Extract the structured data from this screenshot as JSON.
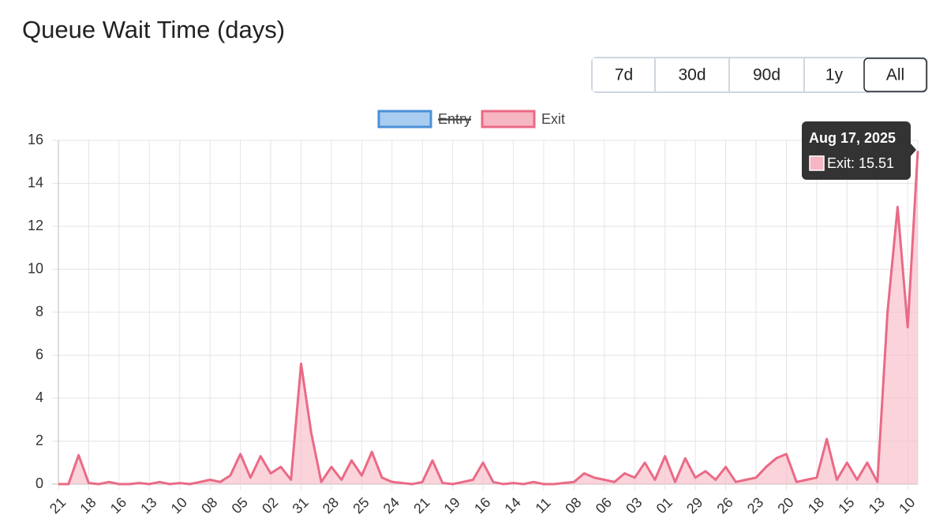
{
  "chart_data": {
    "type": "line",
    "title": "Queue Wait Time (days)",
    "ranges": [
      "7d",
      "30d",
      "90d",
      "1y",
      "All"
    ],
    "active_range": 4,
    "categories": [
      "21",
      null,
      null,
      "18",
      null,
      null,
      "16",
      null,
      null,
      "13",
      null,
      null,
      "10",
      null,
      null,
      "08",
      null,
      null,
      "05",
      null,
      null,
      "02",
      null,
      null,
      "31",
      null,
      null,
      "28",
      null,
      null,
      "25",
      null,
      null,
      "24",
      null,
      null,
      "21",
      null,
      null,
      "19",
      null,
      null,
      "16",
      null,
      null,
      "14",
      null,
      null,
      "11",
      null,
      null,
      "08",
      null,
      null,
      "06",
      null,
      null,
      "03",
      null,
      null,
      "01",
      null,
      null,
      "29",
      null,
      null,
      "26",
      null,
      null,
      "23",
      null,
      null,
      "20",
      null,
      null,
      "18",
      null,
      null,
      "15",
      null,
      null,
      "13",
      null,
      null,
      "10",
      null
    ],
    "series": [
      {
        "name": "Entry",
        "color": "#4a90d9",
        "fill": "#a9cdf0",
        "hidden": true
      },
      {
        "name": "Exit",
        "color": "#ea6a85",
        "fill": "#f7b6c3",
        "hidden": false,
        "values": [
          0,
          0,
          1.35,
          0.05,
          0,
          0.1,
          0,
          0,
          0.05,
          0,
          0.1,
          0,
          0.05,
          0,
          0.1,
          0.2,
          0.1,
          0.4,
          1.4,
          0.3,
          1.3,
          0.5,
          0.8,
          0.2,
          5.6,
          2.4,
          0.1,
          0.8,
          0.2,
          1.1,
          0.4,
          1.5,
          0.3,
          0.1,
          0.05,
          0,
          0.1,
          1.1,
          0.05,
          0,
          0.1,
          0.2,
          1.0,
          0.1,
          0,
          0.05,
          0,
          0.1,
          0,
          0,
          0.05,
          0.1,
          0.5,
          0.3,
          0.2,
          0.1,
          0.5,
          0.3,
          1.0,
          0.2,
          1.3,
          0.1,
          1.2,
          0.3,
          0.6,
          0.2,
          0.8,
          0.1,
          0.2,
          0.3,
          0.8,
          1.2,
          1.4,
          0.1,
          0.2,
          0.3,
          2.1,
          0.2,
          1.0,
          0.2,
          1.0,
          0.1,
          8.0,
          12.9,
          7.3,
          15.51
        ]
      }
    ],
    "ylim": [
      0,
      16
    ],
    "yticks": [
      0,
      2,
      4,
      6,
      8,
      10,
      12,
      14,
      16
    ],
    "grid": true,
    "tooltip": {
      "title": "Aug 17, 2025",
      "label": "Exit: 15.51"
    }
  }
}
